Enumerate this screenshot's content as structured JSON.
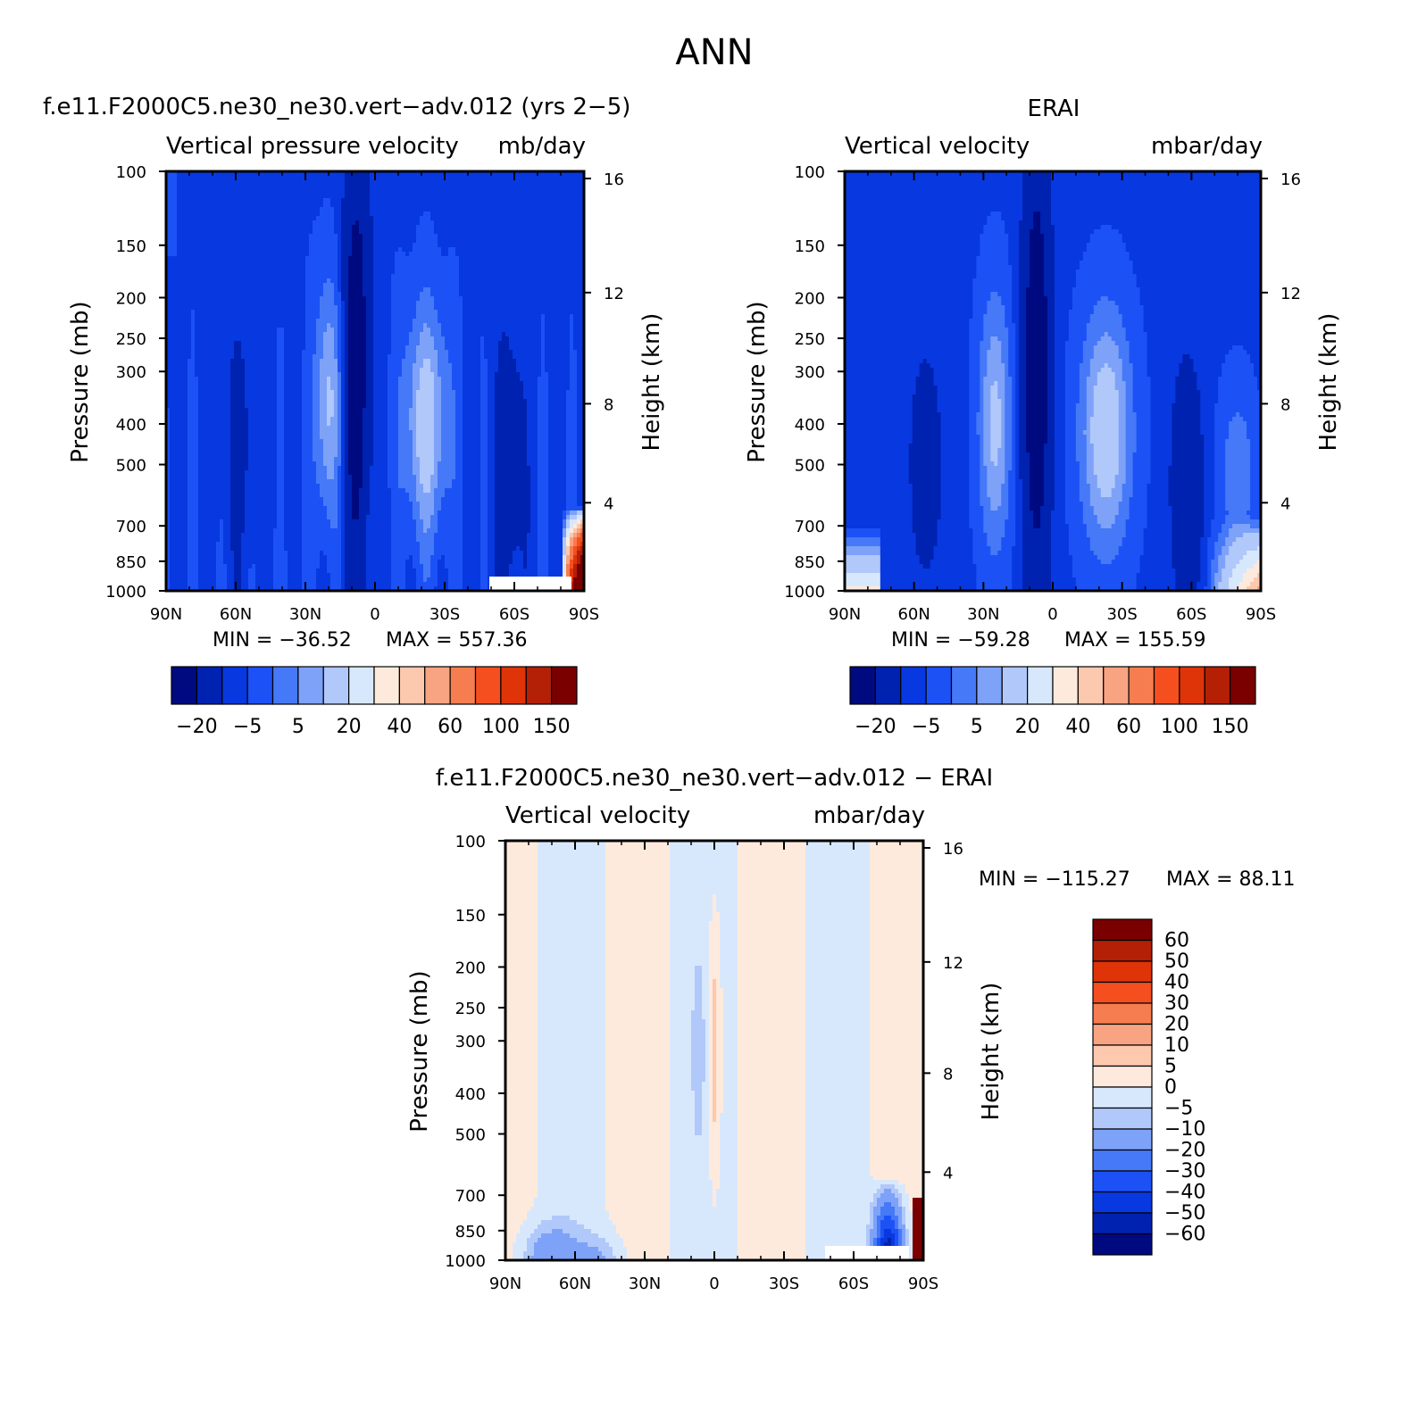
{
  "page": {
    "title": "ANN"
  },
  "colors": {
    "panel_palette": [
      "#000a80",
      "#0022b0",
      "#0838e0",
      "#1c52f5",
      "#4679f7",
      "#7ea2f8",
      "#b1c8fa",
      "#d8e8fc",
      "#feeadc",
      "#fcc8ae",
      "#f8a482",
      "#f67d50",
      "#f54f20",
      "#df3408",
      "#b32006",
      "#7a0000"
    ],
    "diff_palette": [
      "#000a80",
      "#0022b0",
      "#0838e0",
      "#1c52f5",
      "#4679f7",
      "#7ea2f8",
      "#b1c8fa",
      "#d8e8fc",
      "#feeadc",
      "#fcc8ae",
      "#f8a482",
      "#f67d50",
      "#f54f20",
      "#df3408",
      "#b32006",
      "#7a0000"
    ]
  },
  "chart_data": [
    {
      "id": "model",
      "type": "heatmap",
      "title": "f.e11.F2000C5.ne30_ne30.vert-adv.012 (yrs 2-5)",
      "subtitle_left": "Vertical pressure velocity",
      "subtitle_right": "mb/day",
      "ylabel": "Pressure (mb)",
      "y2label": "Height (km)",
      "x_ticks": [
        "90N",
        "60N",
        "30N",
        "0",
        "30S",
        "60S",
        "90S"
      ],
      "y_ticks": [
        "100",
        "150",
        "200",
        "250",
        "300",
        "400",
        "500",
        "700",
        "850",
        "1000"
      ],
      "y2_ticks": [
        "16",
        "12",
        "8",
        "4"
      ],
      "min_label": "MIN = -36.52",
      "max_label": "MAX = 557.36",
      "min": -36.52,
      "max": 557.36,
      "colorbar_labels": [
        "-20",
        "-5",
        "5",
        "20",
        "40",
        "60",
        "100",
        "150"
      ]
    },
    {
      "id": "obs",
      "type": "heatmap",
      "title": "ERAI",
      "subtitle_left": "Vertical velocity",
      "subtitle_right": "mbar/day",
      "ylabel": "Pressure (mb)",
      "y2label": "Height (km)",
      "x_ticks": [
        "90N",
        "60N",
        "30N",
        "0",
        "30S",
        "60S",
        "90S"
      ],
      "y_ticks": [
        "100",
        "150",
        "200",
        "250",
        "300",
        "400",
        "500",
        "700",
        "850",
        "1000"
      ],
      "y2_ticks": [
        "16",
        "12",
        "8",
        "4"
      ],
      "min_label": "MIN = -59.28",
      "max_label": "MAX = 155.59",
      "min": -59.28,
      "max": 155.59,
      "colorbar_labels": [
        "-20",
        "-5",
        "5",
        "20",
        "40",
        "60",
        "100",
        "150"
      ]
    },
    {
      "id": "diff",
      "type": "heatmap",
      "title": "f.e11.F2000C5.ne30_ne30.vert-adv.012 - ERAI",
      "subtitle_left": "Vertical velocity",
      "subtitle_right": "mbar/day",
      "ylabel": "Pressure (mb)",
      "y2label": "Height (km)",
      "x_ticks": [
        "90N",
        "60N",
        "30N",
        "0",
        "30S",
        "60S",
        "90S"
      ],
      "y_ticks": [
        "100",
        "150",
        "200",
        "250",
        "300",
        "400",
        "500",
        "700",
        "850",
        "1000"
      ],
      "y2_ticks": [
        "16",
        "12",
        "8",
        "4"
      ],
      "min_label": "MIN = -115.27",
      "max_label": "MAX =  88.11",
      "min": -115.27,
      "max": 88.11,
      "colorbar_labels": [
        "60",
        "50",
        "40",
        "30",
        "20",
        "10",
        "5",
        "0",
        "-5",
        "-10",
        "-20",
        "-30",
        "-40",
        "-50",
        "-60"
      ]
    }
  ]
}
